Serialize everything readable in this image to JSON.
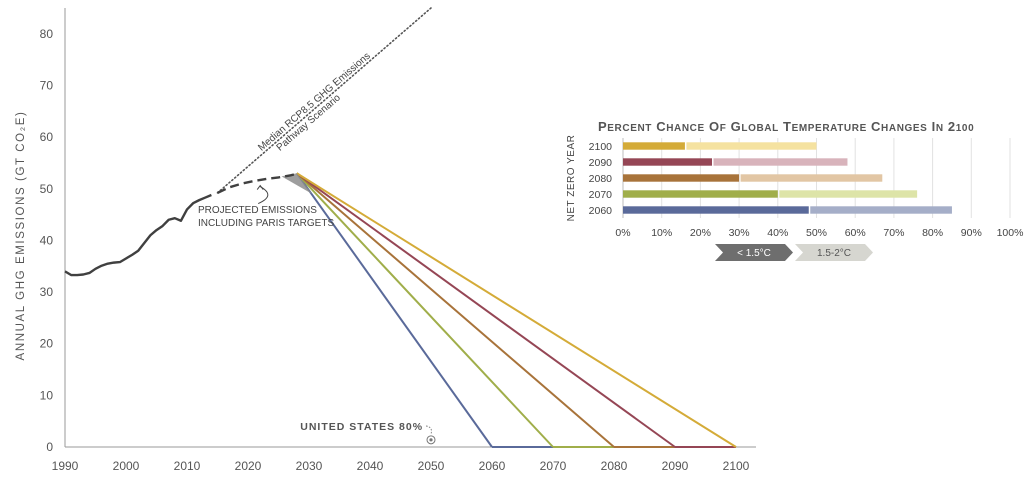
{
  "chart_data": [
    {
      "type": "line",
      "ylabel": "ANNUAL GHG EMISSIONS (GT CO₂E)",
      "xlim": [
        1990,
        2100
      ],
      "ylim": [
        0,
        85
      ],
      "x_ticks": [
        "1990",
        "2000",
        "2010",
        "2020",
        "2030",
        "2040",
        "2050",
        "2060",
        "2070",
        "2080",
        "2090",
        "2100"
      ],
      "y_ticks": [
        "0",
        "10",
        "20",
        "30",
        "40",
        "50",
        "60",
        "70",
        "80"
      ],
      "historical": {
        "color": "#404040",
        "points": [
          [
            1990,
            34.0
          ],
          [
            1991,
            33.3
          ],
          [
            1992,
            33.3
          ],
          [
            1993,
            33.4
          ],
          [
            1994,
            33.7
          ],
          [
            1995,
            34.5
          ],
          [
            1996,
            35.1
          ],
          [
            1997,
            35.5
          ],
          [
            1998,
            35.7
          ],
          [
            1999,
            35.8
          ],
          [
            2000,
            36.5
          ],
          [
            2001,
            37.2
          ],
          [
            2002,
            38.0
          ],
          [
            2003,
            39.5
          ],
          [
            2004,
            41.0
          ],
          [
            2005,
            42.0
          ],
          [
            2006,
            42.8
          ],
          [
            2007,
            44.0
          ],
          [
            2008,
            44.3
          ],
          [
            2009,
            43.8
          ],
          [
            2010,
            46.0
          ],
          [
            2011,
            47.2
          ],
          [
            2012,
            47.8
          ],
          [
            2013,
            48.3
          ],
          [
            2014,
            48.8
          ]
        ]
      },
      "projected": {
        "label": "PROJECTED EMISSIONS\nINCLUDING PARIS TARGETS",
        "color": "#404040",
        "points": [
          [
            2015,
            49.2
          ],
          [
            2017,
            50.3
          ],
          [
            2019,
            51.0
          ],
          [
            2021,
            51.5
          ],
          [
            2023,
            51.9
          ],
          [
            2025,
            52.2
          ],
          [
            2027,
            52.6
          ],
          [
            2028,
            52.9
          ]
        ]
      },
      "rcp85": {
        "label": "Median RCP8.5 GHG Emissions\nPathway Scenario",
        "color": "#555555",
        "points": [
          [
            2015,
            49.2
          ],
          [
            2050,
            85.0
          ]
        ]
      },
      "pathways": [
        {
          "net_zero_year": 2060,
          "color": "#5a6a9a",
          "points": [
            [
              2028,
              53
            ],
            [
              2060,
              0
            ]
          ]
        },
        {
          "net_zero_year": 2070,
          "color": "#a0ae4a",
          "points": [
            [
              2028,
              53
            ],
            [
              2070,
              0
            ]
          ]
        },
        {
          "net_zero_year": 2080,
          "color": "#a8733a",
          "points": [
            [
              2028,
              53
            ],
            [
              2080,
              0
            ]
          ]
        },
        {
          "net_zero_year": 2090,
          "color": "#954655",
          "points": [
            [
              2028,
              53
            ],
            [
              2090,
              0
            ]
          ]
        },
        {
          "net_zero_year": 2100,
          "color": "#d4ab38",
          "points": [
            [
              2028,
              53
            ],
            [
              2100,
              0
            ]
          ]
        }
      ],
      "annotation": {
        "text": "UNITED STATES 80%",
        "x": 2050,
        "y": 1
      }
    },
    {
      "type": "bar",
      "orientation": "horizontal",
      "stacked": true,
      "title": "Percent Chance of Global Temperature Changes in 2100",
      "ylabel": "NET ZERO YEAR",
      "categories": [
        "2100",
        "2090",
        "2080",
        "2070",
        "2060"
      ],
      "xlim": [
        0,
        100
      ],
      "x_ticks": [
        "0%",
        "10%",
        "20%",
        "30%",
        "40%",
        "50%",
        "60%",
        "70%",
        "80%",
        "90%",
        "100%"
      ],
      "series": [
        {
          "name": "< 1.5°C",
          "values": [
            16,
            23,
            30,
            40,
            48
          ],
          "colors": [
            "#d4ab38",
            "#954655",
            "#a8733a",
            "#a0ae4a",
            "#5a6a9a"
          ]
        },
        {
          "name": "1.5-2°C",
          "values": [
            34,
            35,
            37,
            36,
            37
          ],
          "colors": [
            "#f5e2a0",
            "#d8b3bb",
            "#e2c6a4",
            "#dde4a8",
            "#a5aec8"
          ]
        }
      ],
      "legend_colors": [
        "#6e6e6e",
        "#d6d6d0"
      ],
      "legend_text_colors": [
        "#ffffff",
        "#555555"
      ]
    }
  ]
}
